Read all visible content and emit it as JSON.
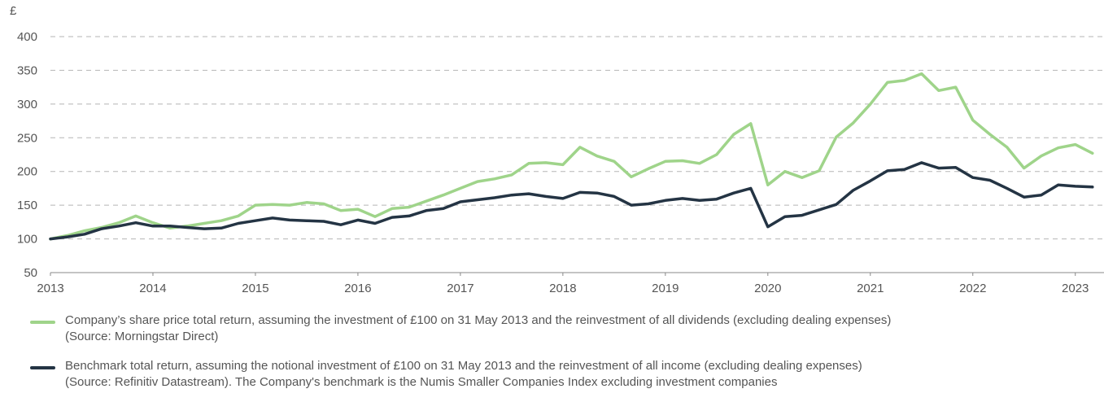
{
  "chart_data": {
    "type": "line",
    "y_label": "£",
    "xlim": [
      2013,
      2023.28
    ],
    "xticks": [
      2013,
      2014,
      2015,
      2016,
      2017,
      2018,
      2019,
      2020,
      2021,
      2022,
      2023
    ],
    "ylim": [
      50,
      400
    ],
    "yticks": [
      50,
      100,
      150,
      200,
      250,
      300,
      350,
      400
    ],
    "grid": true,
    "legend": "bottom",
    "x": [
      2013,
      2013.167,
      2013.333,
      2013.5,
      2013.667,
      2013.833,
      2014,
      2014.167,
      2014.333,
      2014.5,
      2014.667,
      2014.833,
      2015,
      2015.167,
      2015.333,
      2015.5,
      2015.667,
      2015.833,
      2016,
      2016.167,
      2016.333,
      2016.5,
      2016.667,
      2016.833,
      2017,
      2017.167,
      2017.333,
      2017.5,
      2017.667,
      2017.833,
      2018,
      2018.167,
      2018.333,
      2018.5,
      2018.667,
      2018.833,
      2019,
      2019.167,
      2019.333,
      2019.5,
      2019.667,
      2019.833,
      2020,
      2020.167,
      2020.333,
      2020.5,
      2020.667,
      2020.833,
      2021,
      2021.167,
      2021.333,
      2021.5,
      2021.667,
      2021.833,
      2022,
      2022.167,
      2022.333,
      2022.5,
      2022.667,
      2022.833,
      2023,
      2023.167
    ],
    "series": [
      {
        "name": "Company’s share price total return, assuming the investment of £100 on 31 May 2013 and the reinvestment of all dividends (excluding dealing expenses)\n(Source: Morningstar Direct)",
        "color": "#9fd48a",
        "values": [
          100,
          105,
          112,
          117,
          124,
          134,
          124,
          116,
          119,
          123,
          127,
          134,
          150,
          151,
          150,
          154,
          152,
          142,
          144,
          133,
          145,
          147,
          156,
          165,
          175,
          185,
          189,
          195,
          212,
          213,
          210,
          236,
          223,
          215,
          192,
          204,
          215,
          216,
          212,
          225,
          255,
          271,
          180,
          200,
          191,
          201,
          251,
          272,
          300,
          332,
          335,
          345,
          320,
          325,
          276,
          255,
          236,
          205,
          223,
          235,
          240,
          227
        ]
      },
      {
        "name": "Benchmark total return, assuming the notional investment of £100 on 31 May 2013 and the reinvestment of all income (excluding dealing expenses)\n(Source: Refinitiv Datastream). The Company's benchmark is the Numis Smaller Companies Index excluding investment companies",
        "color": "#243444",
        "values": [
          100,
          103,
          107,
          115,
          119,
          124,
          119,
          119,
          117,
          115,
          116,
          123,
          127,
          131,
          128,
          127,
          126,
          121,
          128,
          123,
          132,
          134,
          142,
          145,
          155,
          158,
          161,
          165,
          167,
          163,
          160,
          169,
          168,
          163,
          150,
          152,
          157,
          160,
          157,
          159,
          168,
          175,
          118,
          133,
          135,
          143,
          151,
          172,
          186,
          201,
          203,
          213,
          205,
          206,
          191,
          187,
          175,
          162,
          165,
          180,
          178,
          177
        ]
      }
    ]
  }
}
